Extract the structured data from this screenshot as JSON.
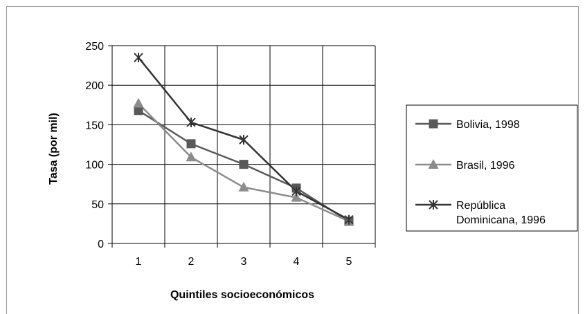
{
  "chart_data": {
    "type": "line",
    "xlabel": "Quintiles socioeconómicos",
    "ylabel": "Tasa (por mil)",
    "categories": [
      "1",
      "2",
      "3",
      "4",
      "5"
    ],
    "ylim": [
      0,
      250
    ],
    "yticks": [
      "0",
      "50",
      "100",
      "150",
      "200",
      "250"
    ],
    "grid": true,
    "legend_position": "right",
    "series": [
      {
        "name": "Bolivia, 1998",
        "values": [
          168,
          126,
          100,
          70,
          28
        ],
        "color": "#595959",
        "marker": "square"
      },
      {
        "name": "Brasil, 1996",
        "values": [
          177,
          109,
          71,
          58,
          28
        ],
        "color": "#8c8c8c",
        "marker": "triangle"
      },
      {
        "name": "República Dominicana, 1996",
        "legend_lines": [
          "República",
          "Dominicana, 1996"
        ],
        "values": [
          235,
          153,
          131,
          66,
          30
        ],
        "color": "#333333",
        "marker": "star"
      }
    ]
  }
}
